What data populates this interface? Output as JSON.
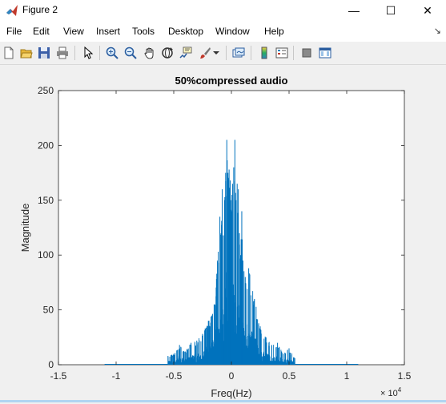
{
  "window": {
    "title": "Figure 2",
    "minimize_glyph": "—",
    "maximize_glyph": "☐",
    "close_glyph": "✕"
  },
  "menu": {
    "items": [
      "File",
      "Edit",
      "View",
      "Insert",
      "Tools",
      "Desktop",
      "Window",
      "Help"
    ],
    "overflow_glyph": "↘"
  },
  "toolbar": {
    "tools": [
      "new-figure-icon",
      "open-file-icon",
      "save-icon",
      "print-icon",
      "edit-plot-icon",
      "zoom-in-icon",
      "zoom-out-icon",
      "pan-icon",
      "rotate-3d-icon",
      "data-cursor-icon",
      "brush-icon",
      "brush-dropdown-icon",
      "link-plot-icon",
      "insert-colorbar-icon",
      "insert-legend-icon",
      "hide-plot-tools-icon",
      "show-plot-tools-icon"
    ]
  },
  "chart_data": {
    "type": "line",
    "title": "50%compressed audio",
    "xlabel": "Freq(Hz)",
    "ylabel": "Magnitude",
    "xlim": [
      -15000,
      15000
    ],
    "ylim": [
      0,
      250
    ],
    "x_ticks": [
      "-1.5",
      "-1",
      "-0.5",
      "0",
      "0.5",
      "1",
      "1.5"
    ],
    "x_tick_values": [
      -1.5,
      -1,
      -0.5,
      0,
      0.5,
      1,
      1.5
    ],
    "x_exponent": "× 10",
    "x_exponent_power": "4",
    "y_ticks": [
      "0",
      "50",
      "100",
      "150",
      "200",
      "250"
    ],
    "y_tick_values": [
      0,
      50,
      100,
      150,
      200,
      250
    ],
    "grid": false,
    "line_color": "#0072bd",
    "series": [
      {
        "x": [
          -5500,
          -5000,
          -4500,
          -4000,
          -3500,
          -3000,
          -2500,
          -2000,
          -1500,
          -1200,
          -1000,
          -900,
          -800,
          -700,
          -600,
          -500,
          -400,
          -300,
          -200,
          -100,
          -50,
          0,
          50,
          100,
          200,
          300,
          400,
          500,
          600,
          700,
          800,
          900,
          1000,
          1200,
          1500,
          2000,
          2500,
          3000,
          3500,
          4000,
          4500,
          5000,
          5500
        ],
        "values": [
          8,
          10,
          18,
          12,
          20,
          22,
          28,
          40,
          55,
          95,
          135,
          120,
          160,
          118,
          150,
          175,
          205,
          175,
          178,
          168,
          150,
          140,
          155,
          165,
          180,
          205,
          150,
          165,
          160,
          120,
          100,
          140,
          95,
          80,
          88,
          60,
          35,
          25,
          18,
          20,
          10,
          15,
          6
        ]
      }
    ]
  }
}
